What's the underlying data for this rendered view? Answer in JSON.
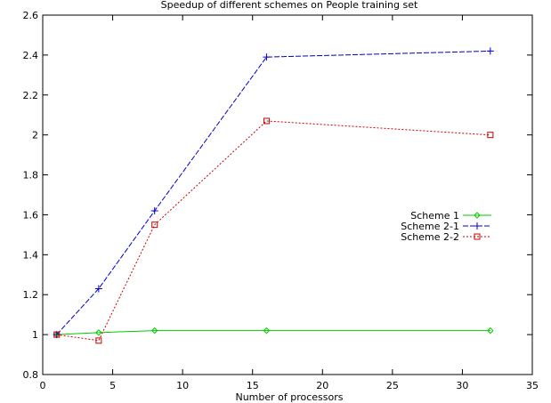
{
  "chart_data": {
    "type": "line",
    "title": "Speedup of different schemes on People training set",
    "xlabel": "Number of processors",
    "ylabel": "",
    "xlim": [
      0,
      35
    ],
    "ylim": [
      0.8,
      2.6
    ],
    "xticks": [
      0,
      5,
      10,
      15,
      20,
      25,
      30,
      35
    ],
    "yticks": [
      0.8,
      1,
      1.2,
      1.4,
      1.6,
      1.8,
      2,
      2.2,
      2.4,
      2.6
    ],
    "grid": false,
    "legend_position": "right",
    "series": [
      {
        "name": "Scheme 1",
        "color": "#00cc00",
        "dash": "solid",
        "marker": "diamond",
        "x": [
          1,
          4,
          8,
          16,
          32
        ],
        "y": [
          1.0,
          1.01,
          1.02,
          1.02,
          1.02
        ]
      },
      {
        "name": "Scheme 2-1",
        "color": "#0000cc",
        "dash": "dashed",
        "marker": "plus",
        "x": [
          1,
          4,
          8,
          16,
          32
        ],
        "y": [
          1.0,
          1.23,
          1.62,
          2.39,
          2.42
        ]
      },
      {
        "name": "Scheme 2-2",
        "color": "#cc0000",
        "dash": "dotted",
        "marker": "square",
        "x": [
          1,
          4,
          8,
          16,
          32
        ],
        "y": [
          1.0,
          0.97,
          1.55,
          2.07,
          2.0
        ]
      }
    ]
  }
}
